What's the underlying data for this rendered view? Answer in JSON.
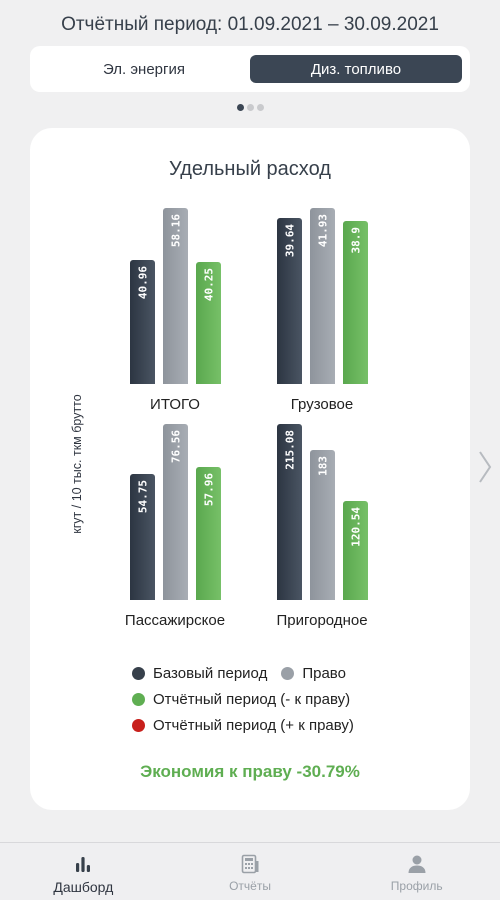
{
  "header": {
    "period": "Отчётный период: 01.09.2021 – 30.09.2021"
  },
  "segment": {
    "options": [
      "Эл. энергия",
      "Диз. топливо"
    ],
    "active_index": 1
  },
  "pager": {
    "pages": 3,
    "active": 0
  },
  "card": {
    "title": "Удельный расход",
    "economy": "Экономия к праву -30.79%"
  },
  "chart_data": {
    "type": "bar",
    "title": "Удельный расход",
    "ylabel": "кгут / 10 тыс. ткм брутто",
    "categories": [
      "ИТОГО",
      "Грузовое",
      "Пассажирское",
      "Пригородное"
    ],
    "series": [
      {
        "name": "Базовый период",
        "values": [
          40.96,
          39.64,
          54.75,
          215.08
        ],
        "labels": [
          "40.96",
          "39.64",
          "54.75",
          "215.08"
        ]
      },
      {
        "name": "Право",
        "values": [
          58.16,
          41.93,
          76.56,
          183
        ],
        "labels": [
          "58.16",
          "41.93",
          "76.56",
          "183"
        ]
      },
      {
        "name": "Отчётный период (- к праву)",
        "values": [
          40.25,
          38.9,
          57.96,
          120.54
        ],
        "labels": [
          "40.25",
          "38.9",
          "57.96",
          "120.54"
        ]
      }
    ],
    "legend": [
      {
        "name": "Базовый период",
        "color": "#37404b"
      },
      {
        "name": "Право",
        "color": "#9aa0a7"
      },
      {
        "name": "Отчётный период (- к праву)",
        "color": "#5fae52"
      },
      {
        "name": "Отчётный период (+ к праву)",
        "color": "#c8201c"
      }
    ],
    "legend_placement": "bottom",
    "grid": false
  },
  "colors": {
    "base": "#37404b",
    "norm": "#9aa0a7",
    "report_minus": "#5fae52",
    "report_plus": "#c8201c",
    "accent_dark": "#3b4654"
  },
  "tabbar": {
    "items": [
      {
        "label": "Дашборд",
        "icon": "bar-chart-icon"
      },
      {
        "label": "Отчёты",
        "icon": "calculator-icon"
      },
      {
        "label": "Профиль",
        "icon": "user-icon"
      }
    ],
    "active_index": 0
  }
}
